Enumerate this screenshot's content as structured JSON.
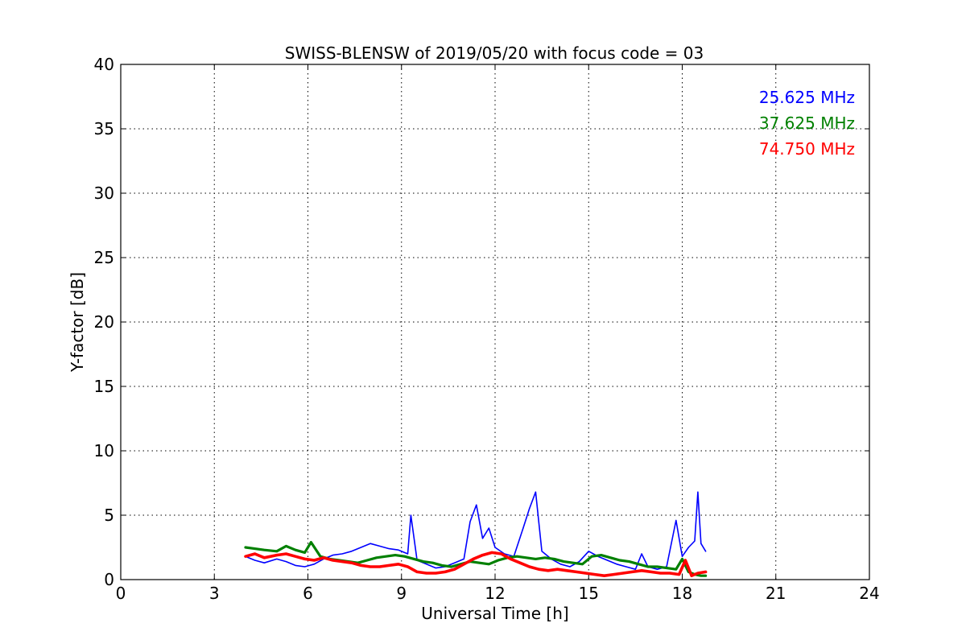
{
  "chart_data": {
    "type": "line",
    "title": "SWISS-BLENSW of 2019/05/20 with focus code = 03",
    "xlabel": "Universal Time [h]",
    "ylabel": "Y-factor [dB]",
    "xlim": [
      0,
      24
    ],
    "ylim": [
      0,
      40
    ],
    "xticks": [
      0,
      3,
      6,
      9,
      12,
      15,
      18,
      21,
      24
    ],
    "yticks": [
      0,
      5,
      10,
      15,
      20,
      25,
      30,
      35,
      40
    ],
    "xtick_labels": [
      "0",
      "3",
      "6",
      "9",
      "12",
      "15",
      "18",
      "21",
      "24"
    ],
    "ytick_labels": [
      "0",
      "5",
      "10",
      "15",
      "20",
      "25",
      "30",
      "35",
      "40"
    ],
    "grid": true,
    "legend_position": "top-right",
    "series": [
      {
        "name": "25.625 MHz",
        "color": "#0000ff",
        "x": [
          4.0,
          4.3,
          4.6,
          5.0,
          5.3,
          5.6,
          5.9,
          6.2,
          6.5,
          6.8,
          7.1,
          7.4,
          7.7,
          8.0,
          8.3,
          8.6,
          8.9,
          9.2,
          9.3,
          9.5,
          9.8,
          10.1,
          10.4,
          10.7,
          11.0,
          11.2,
          11.4,
          11.6,
          11.8,
          12.0,
          12.3,
          12.6,
          12.9,
          13.1,
          13.3,
          13.5,
          13.8,
          14.1,
          14.4,
          14.7,
          15.0,
          15.3,
          15.6,
          15.9,
          16.2,
          16.5,
          16.7,
          16.9,
          17.2,
          17.5,
          17.8,
          18.0,
          18.2,
          18.4,
          18.5,
          18.6,
          18.75
        ],
        "y": [
          1.8,
          1.5,
          1.3,
          1.6,
          1.4,
          1.1,
          1.0,
          1.2,
          1.6,
          1.9,
          2.0,
          2.2,
          2.5,
          2.8,
          2.6,
          2.4,
          2.3,
          2.0,
          5.0,
          1.5,
          1.2,
          0.9,
          1.0,
          1.3,
          1.6,
          4.5,
          5.8,
          3.2,
          4.0,
          2.5,
          2.0,
          1.8,
          4.0,
          5.5,
          6.8,
          2.2,
          1.6,
          1.2,
          1.0,
          1.4,
          2.2,
          1.8,
          1.5,
          1.2,
          1.0,
          0.8,
          2.0,
          1.0,
          0.8,
          1.0,
          4.6,
          1.8,
          2.5,
          3.0,
          6.8,
          2.8,
          2.2
        ]
      },
      {
        "name": "37.625 MHz",
        "color": "#008000",
        "x": [
          4.0,
          4.3,
          4.6,
          5.0,
          5.3,
          5.6,
          5.9,
          6.1,
          6.4,
          6.7,
          7.0,
          7.3,
          7.6,
          7.9,
          8.2,
          8.5,
          8.8,
          9.1,
          9.4,
          9.7,
          10.0,
          10.3,
          10.6,
          10.9,
          11.2,
          11.5,
          11.8,
          12.1,
          12.4,
          12.7,
          13.0,
          13.3,
          13.6,
          13.9,
          14.2,
          14.5,
          14.8,
          15.1,
          15.4,
          15.7,
          16.0,
          16.3,
          16.6,
          16.9,
          17.2,
          17.5,
          17.8,
          18.0,
          18.2,
          18.4,
          18.6,
          18.75
        ],
        "y": [
          2.5,
          2.4,
          2.3,
          2.2,
          2.6,
          2.3,
          2.1,
          2.9,
          1.8,
          1.6,
          1.5,
          1.4,
          1.3,
          1.5,
          1.7,
          1.8,
          1.9,
          1.8,
          1.6,
          1.4,
          1.3,
          1.1,
          1.0,
          1.2,
          1.4,
          1.3,
          1.2,
          1.5,
          1.7,
          1.8,
          1.7,
          1.6,
          1.7,
          1.6,
          1.4,
          1.3,
          1.2,
          1.8,
          1.9,
          1.7,
          1.5,
          1.4,
          1.2,
          1.0,
          1.0,
          0.9,
          0.8,
          1.6,
          0.6,
          0.4,
          0.3,
          0.3
        ]
      },
      {
        "name": "74.750 MHz",
        "color": "#ff0000",
        "x": [
          4.0,
          4.3,
          4.6,
          5.0,
          5.3,
          5.6,
          5.9,
          6.2,
          6.5,
          6.8,
          7.1,
          7.4,
          7.7,
          8.0,
          8.3,
          8.6,
          8.9,
          9.2,
          9.5,
          9.8,
          10.1,
          10.4,
          10.7,
          11.0,
          11.3,
          11.6,
          11.9,
          12.2,
          12.5,
          12.8,
          13.1,
          13.4,
          13.7,
          14.0,
          14.3,
          14.6,
          14.9,
          15.2,
          15.5,
          15.8,
          16.1,
          16.4,
          16.7,
          17.0,
          17.3,
          17.6,
          17.9,
          18.1,
          18.3,
          18.5,
          18.75
        ],
        "y": [
          1.8,
          2.0,
          1.7,
          1.9,
          2.0,
          1.8,
          1.6,
          1.5,
          1.7,
          1.5,
          1.4,
          1.3,
          1.1,
          1.0,
          1.0,
          1.1,
          1.2,
          1.0,
          0.6,
          0.5,
          0.5,
          0.6,
          0.8,
          1.2,
          1.6,
          1.9,
          2.1,
          2.0,
          1.6,
          1.3,
          1.0,
          0.8,
          0.7,
          0.8,
          0.7,
          0.6,
          0.5,
          0.4,
          0.3,
          0.4,
          0.5,
          0.6,
          0.7,
          0.6,
          0.5,
          0.5,
          0.4,
          1.5,
          0.3,
          0.5,
          0.6
        ]
      }
    ]
  }
}
